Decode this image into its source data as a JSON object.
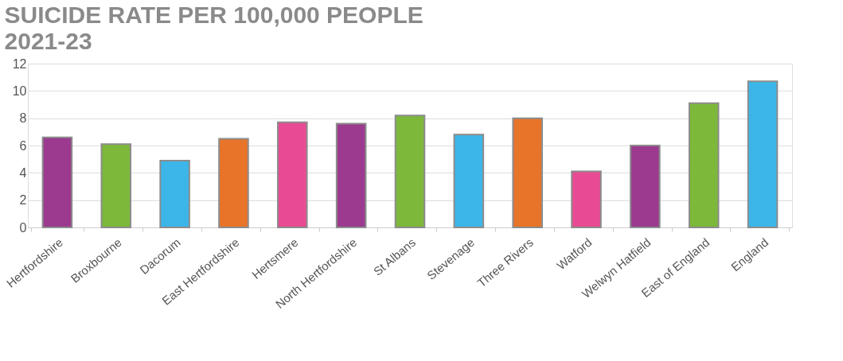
{
  "chart_data": {
    "type": "bar",
    "title": "SUICIDE RATE PER 100,000 PEOPLE",
    "subtitle": "2021-23",
    "categories": [
      "Hertfordshire",
      "Broxbourne",
      "Dacorum",
      "East Hertfordshire",
      "Hertsmere",
      "North Hertfordshire",
      "St Albans",
      "Stevenage",
      "Three Rivers",
      "Watford",
      "Welwyn Hatfield",
      "East of England",
      "England"
    ],
    "values": [
      6.6,
      6.1,
      4.9,
      6.5,
      7.7,
      7.6,
      8.2,
      6.8,
      8.0,
      4.1,
      6.0,
      9.1,
      10.7
    ],
    "colors": [
      "#9b3a8f",
      "#7db83a",
      "#3cb6e8",
      "#e8742a",
      "#e84a93",
      "#9b3a8f",
      "#7db83a",
      "#3cb6e8",
      "#e8742a",
      "#e84a93",
      "#9b3a8f",
      "#7db83a",
      "#3cb6e8"
    ],
    "ylim": [
      0,
      12
    ],
    "yticks": [
      0,
      2,
      4,
      6,
      8,
      10,
      12
    ],
    "grid": "y"
  }
}
